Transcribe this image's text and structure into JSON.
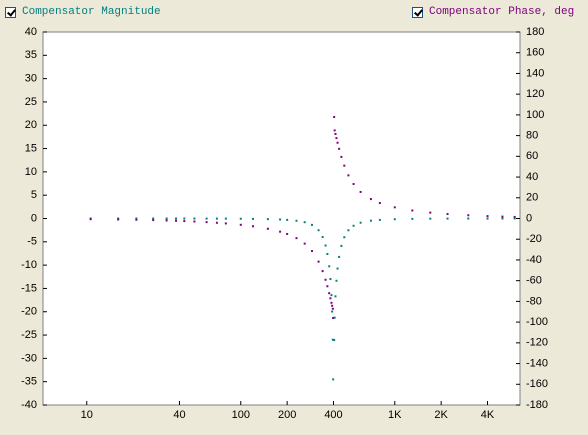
{
  "chart_data": {
    "type": "scatter",
    "xscale": "log",
    "x": [
      10.6,
      16,
      21,
      27,
      33,
      38,
      43,
      50,
      60,
      70,
      80,
      100,
      120,
      150,
      180,
      200,
      230,
      260,
      290,
      320,
      340,
      355,
      365,
      375,
      382,
      388,
      392,
      396,
      398,
      404,
      407,
      412,
      418,
      425,
      435,
      450,
      470,
      500,
      540,
      600,
      700,
      800,
      1000,
      1300,
      1700,
      2200,
      3000,
      4000,
      5000,
      6000
    ],
    "xlim": [
      5.2,
      6500
    ],
    "xticks": [
      10,
      40,
      100,
      200,
      400,
      {
        "value": 1000,
        "label": "1K"
      },
      {
        "value": 2000,
        "label": "2K"
      },
      {
        "value": 4000,
        "label": "4K"
      }
    ],
    "ylim": [
      -40,
      40
    ],
    "yticks": [
      -40,
      -35,
      -30,
      -25,
      -20,
      -15,
      -10,
      -5,
      0,
      5,
      10,
      15,
      20,
      25,
      30,
      35,
      40
    ],
    "y2lim": [
      -180,
      180
    ],
    "y2ticks": [
      -180,
      -160,
      -140,
      -120,
      -100,
      -80,
      -60,
      -40,
      -20,
      0,
      20,
      40,
      60,
      80,
      100,
      120,
      140,
      160,
      180
    ],
    "series": [
      {
        "name": "Compensator Magnitude",
        "color": "#008080",
        "values": [
          0,
          0,
          0,
          0,
          -0.01,
          -0.01,
          -0.01,
          -0.01,
          -0.02,
          -0.02,
          -0.03,
          -0.05,
          -0.08,
          -0.13,
          -0.21,
          -0.3,
          -0.49,
          -0.8,
          -1.37,
          -2.52,
          -3.98,
          -5.79,
          -7.61,
          -10.25,
          -12.98,
          -16.44,
          -19.96,
          -25.99,
          -34.5,
          -26.07,
          -21.27,
          -16.7,
          -13.35,
          -10.74,
          -8.24,
          -5.88,
          -4.02,
          -2.52,
          -1.56,
          -0.9,
          -0.47,
          -0.3,
          -0.16,
          -0.08,
          -0.04,
          -0.02,
          -0.01,
          -0.01,
          0,
          0
        ]
      },
      {
        "name": "Compensator Phase, deg",
        "color": "#800080",
        "axis": "y2",
        "values": [
          -0.61,
          -0.92,
          -1.21,
          -1.55,
          -1.9,
          -2.2,
          -2.49,
          -2.91,
          -3.51,
          -4.13,
          -4.76,
          -6.09,
          -7.51,
          -9.9,
          -12.72,
          -14.93,
          -18.96,
          -24.24,
          -31.44,
          -41.63,
          -50.78,
          -59.12,
          -65.38,
          -72.1,
          -77.03,
          -81.34,
          -84.23,
          -87.12,
          -96,
          98,
          85.04,
          81.59,
          77.59,
          73.13,
          67.22,
          59.45,
          51,
          41.63,
          33.29,
          25.64,
          18.74,
          14.93,
          10.78,
          7.74,
          5.69,
          4.3,
          3.11,
          2.31,
          1.84,
          1.53
        ]
      }
    ]
  }
}
